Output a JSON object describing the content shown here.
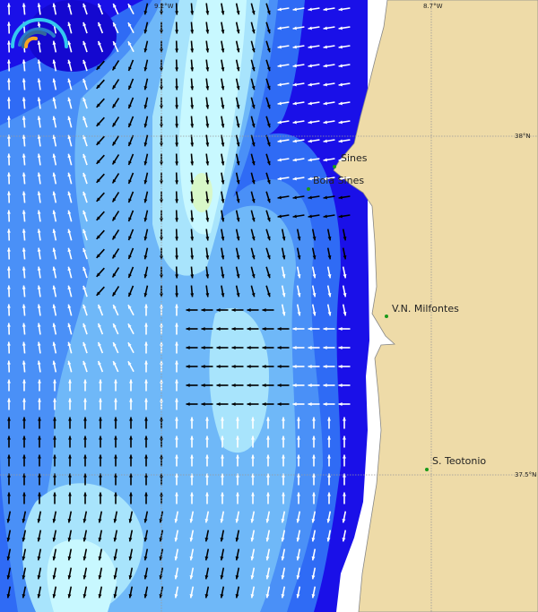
{
  "map": {
    "grid_labels": {
      "lon1": "9.2°W",
      "lon2": "8.7°W",
      "lat1": "38°N",
      "lat2": "37.5°N"
    },
    "places": [
      {
        "name": "Sines"
      },
      {
        "name": "Boia Sines"
      },
      {
        "name": "V.N. Milfontes"
      },
      {
        "name": "S. Teotonio"
      }
    ],
    "colors": {
      "land": "#eedba8",
      "deep": "#1a10e8",
      "mid": "#2f6bf5",
      "light": "#6fb8f8",
      "pale": "#c8f8ff",
      "peak": "#d8f8c8",
      "marker": "#1a9a1a"
    },
    "logo": "wave-logo"
  }
}
